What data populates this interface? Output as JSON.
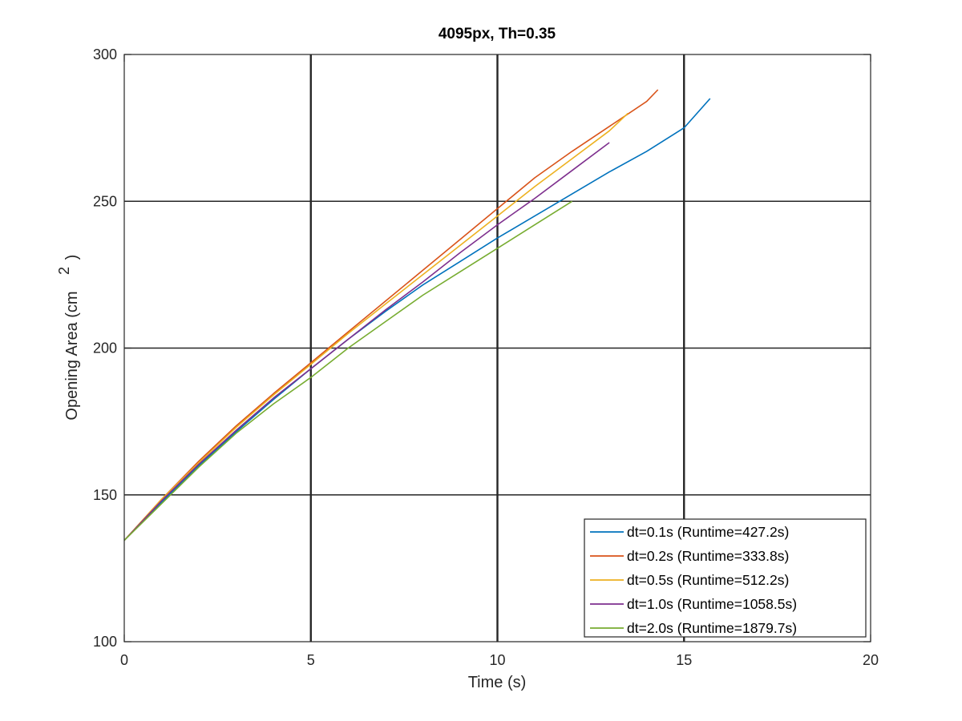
{
  "chart_data": {
    "type": "line",
    "title": "4095px, Th=0.35",
    "xlabel": "Time (s)",
    "ylabel_main": "Opening Area (cm",
    "ylabel_sup": "2",
    "ylabel_close": ")",
    "xlim": [
      0,
      20
    ],
    "ylim": [
      100,
      300
    ],
    "xticks": [
      0,
      5,
      10,
      15,
      20
    ],
    "yticks": [
      100,
      150,
      200,
      250,
      300
    ],
    "xtick_labels": [
      "0",
      "5",
      "10",
      "15",
      "20"
    ],
    "ytick_labels": [
      "100",
      "150",
      "200",
      "250",
      "300"
    ],
    "grid": true,
    "legend_position": "bottom-right",
    "series": [
      {
        "name": "dt=0.1s (Runtime=427.2s)",
        "color": "#0072BD",
        "x": [
          0,
          1,
          2,
          3,
          4,
          5,
          6,
          7,
          8,
          9,
          10,
          11,
          12,
          13,
          14,
          15,
          15.7
        ],
        "y": [
          134.5,
          147.5,
          160,
          171.5,
          182.5,
          193,
          203,
          212.5,
          221.5,
          229.5,
          237.5,
          245,
          252.5,
          260,
          267,
          275,
          285
        ]
      },
      {
        "name": "dt=0.2s (Runtime=333.8s)",
        "color": "#D95319",
        "x": [
          0,
          1,
          2,
          3,
          4,
          5,
          6,
          7,
          8,
          9,
          10,
          11,
          12,
          13,
          14,
          14.3
        ],
        "y": [
          134.5,
          148.5,
          161.5,
          173.5,
          184.5,
          195,
          205.5,
          216,
          226.5,
          237,
          247.5,
          258,
          267,
          275.5,
          284,
          288
        ]
      },
      {
        "name": "dt=0.5s (Runtime=512.2s)",
        "color": "#EDB120",
        "x": [
          0,
          1,
          2,
          3,
          4,
          5,
          6,
          7,
          8,
          9,
          10,
          11,
          12,
          13,
          13.5
        ],
        "y": [
          134.5,
          148.5,
          161,
          173,
          184,
          194.5,
          205,
          215,
          225,
          235,
          245,
          255,
          264.5,
          274,
          280
        ]
      },
      {
        "name": "dt=1.0s (Runtime=1058.5s)",
        "color": "#7E2F8E",
        "x": [
          0,
          1,
          2,
          3,
          4,
          5,
          6,
          7,
          8,
          9,
          10,
          11,
          12,
          13
        ],
        "y": [
          134.5,
          148,
          160.5,
          172,
          183,
          193,
          203,
          213,
          222.5,
          232.5,
          242,
          251,
          260.5,
          270
        ]
      },
      {
        "name": "dt=2.0s (Runtime=1879.7s)",
        "color": "#77AC30",
        "x": [
          0,
          1,
          2,
          3,
          4,
          5,
          6,
          7,
          8,
          9,
          10,
          11,
          12
        ],
        "y": [
          134.5,
          147,
          159.5,
          171,
          181,
          190,
          200,
          209,
          218,
          226,
          234,
          242,
          250
        ]
      }
    ]
  }
}
